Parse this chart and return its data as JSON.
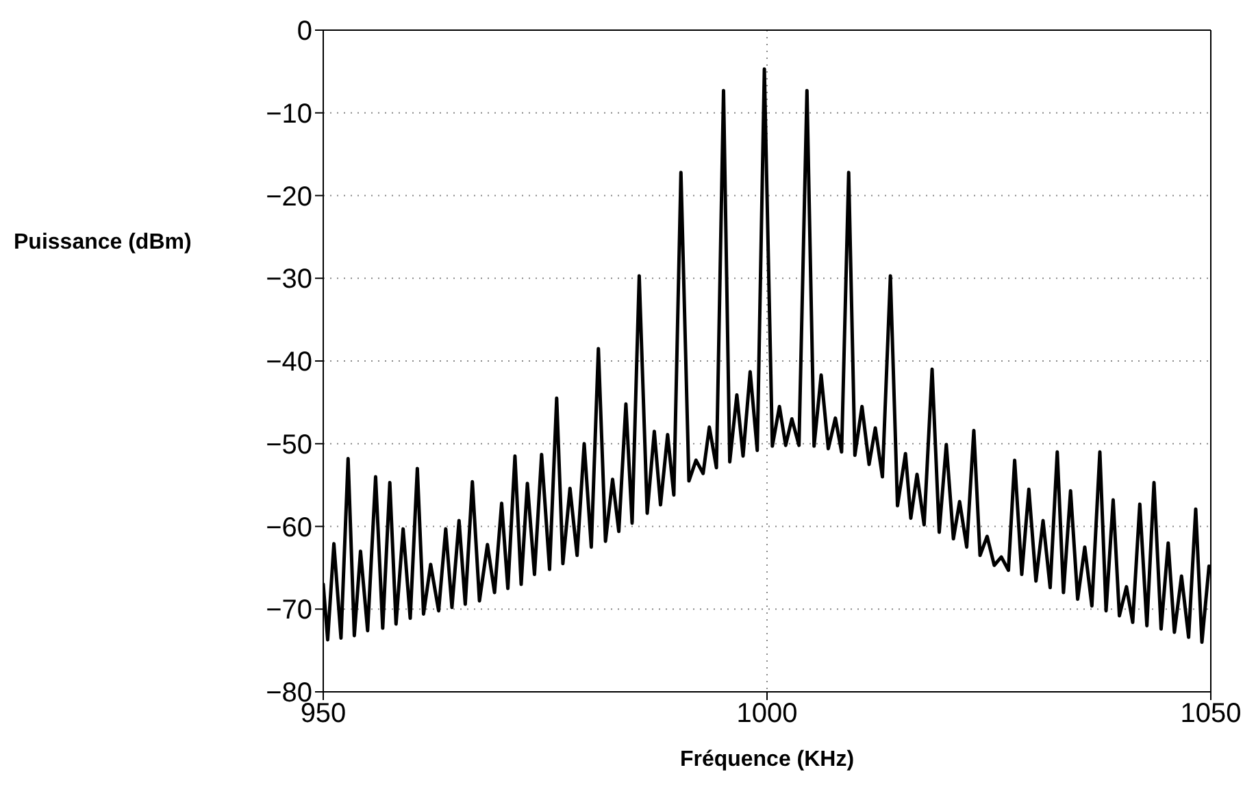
{
  "chart_data": {
    "type": "line",
    "xlabel": "Fréquence (KHz)",
    "ylabel": "Puissance (dBm)",
    "xlim": [
      950,
      1050
    ],
    "xticks": [
      950,
      1000,
      1050
    ],
    "ylim": [
      -80,
      0
    ],
    "yticks": [
      -80,
      -70,
      -60,
      -50,
      -40,
      -30,
      -20,
      -10,
      0
    ],
    "grid": true,
    "marker": "none",
    "line_style": "solid",
    "series": [
      {
        "color": "#000000",
        "x": [
          950.0,
          950.5,
          951.2,
          952.0,
          952.8,
          953.5,
          954.2,
          955.0,
          955.9,
          956.7,
          957.5,
          958.2,
          959.0,
          959.8,
          960.6,
          961.3,
          962.1,
          963.0,
          963.8,
          964.5,
          965.3,
          966.0,
          966.8,
          967.6,
          968.5,
          969.3,
          970.1,
          970.8,
          971.6,
          972.3,
          973.0,
          973.8,
          974.6,
          975.5,
          976.3,
          977.0,
          977.8,
          978.6,
          979.4,
          980.2,
          981.0,
          981.8,
          982.6,
          983.3,
          984.1,
          984.8,
          985.6,
          986.5,
          987.3,
          988.0,
          988.8,
          989.5,
          990.3,
          991.2,
          992.0,
          992.8,
          993.5,
          994.3,
          995.1,
          995.8,
          996.6,
          997.3,
          998.1,
          998.9,
          999.7,
          1000.6,
          1001.4,
          1002.1,
          1002.8,
          1003.6,
          1004.5,
          1005.3,
          1006.1,
          1006.9,
          1007.7,
          1008.4,
          1009.2,
          1009.9,
          1010.7,
          1011.5,
          1012.2,
          1013.0,
          1013.9,
          1014.7,
          1015.6,
          1016.2,
          1016.9,
          1017.7,
          1018.6,
          1019.4,
          1020.2,
          1021.0,
          1021.7,
          1022.5,
          1023.3,
          1024.0,
          1024.8,
          1025.6,
          1026.4,
          1027.2,
          1027.9,
          1028.7,
          1029.5,
          1030.3,
          1031.1,
          1031.9,
          1032.7,
          1033.4,
          1034.2,
          1035.0,
          1035.8,
          1036.6,
          1037.5,
          1038.2,
          1039.0,
          1039.7,
          1040.5,
          1041.2,
          1042.0,
          1042.8,
          1043.6,
          1044.4,
          1045.2,
          1045.9,
          1046.7,
          1047.5,
          1048.3,
          1049.0,
          1049.8,
          1050.0
        ],
        "values": [
          -67,
          -73.7,
          -62.1,
          -73.5,
          -51.8,
          -73.2,
          -63,
          -72.6,
          -54,
          -72.3,
          -54.7,
          -71.8,
          -60.3,
          -71.1,
          -53,
          -70.6,
          -64.6,
          -70.2,
          -60.3,
          -69.8,
          -59.3,
          -69.4,
          -54.6,
          -69.0,
          -62.2,
          -68.0,
          -57.2,
          -67.5,
          -51.5,
          -67.0,
          -54.8,
          -65.8,
          -51.3,
          -65.2,
          -44.5,
          -64.5,
          -55.4,
          -63.5,
          -50,
          -62.5,
          -38.5,
          -61.8,
          -54.3,
          -60.6,
          -45.2,
          -59.6,
          -29.7,
          -58.4,
          -48.5,
          -57.4,
          -48.9,
          -56.2,
          -17.2,
          -54.5,
          -52,
          -53.6,
          -48,
          -52.9,
          -7.3,
          -52.2,
          -44.1,
          -51.5,
          -41.3,
          -50.8,
          -4.7,
          -50.3,
          -45.5,
          -50.2,
          -47,
          -50.2,
          -7.3,
          -50.3,
          -41.7,
          -50.6,
          -46.9,
          -51,
          -17.2,
          -51.4,
          -45.5,
          -52.5,
          -48.1,
          -54,
          -29.7,
          -57.5,
          -51.2,
          -59,
          -53.7,
          -59.8,
          -41,
          -60.7,
          -50.1,
          -61.5,
          -57,
          -62.5,
          -48.4,
          -63.5,
          -61.2,
          -64.7,
          -63.7,
          -65.3,
          -52,
          -65.8,
          -55.5,
          -66.6,
          -59.3,
          -67.4,
          -51,
          -68.0,
          -55.7,
          -68.8,
          -62.5,
          -69.6,
          -51,
          -70.2,
          -56.8,
          -70.8,
          -67.3,
          -71.6,
          -57.3,
          -72,
          -54.7,
          -72.4,
          -62,
          -72.8,
          -66,
          -73.4,
          -57.9,
          -74,
          -64.8,
          -65
        ]
      }
    ]
  }
}
